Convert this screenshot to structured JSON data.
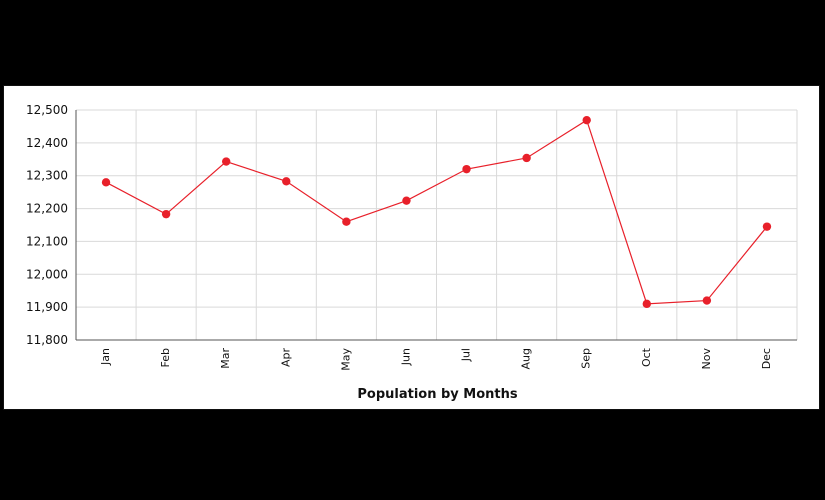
{
  "chart_data": {
    "type": "line",
    "title": "",
    "xlabel": "Population by Months",
    "ylabel": "",
    "categories": [
      "Jan",
      "Feb",
      "Mar",
      "Apr",
      "May",
      "Jun",
      "Jul",
      "Aug",
      "Sep",
      "Oct",
      "Nov",
      "Dec"
    ],
    "series": [
      {
        "values": [
          12280,
          12183,
          12343,
          12283,
          12160,
          12224,
          12320,
          12354,
          12469,
          11910,
          11920,
          12145
        ]
      }
    ],
    "y_ticks": [
      "11,800",
      "11,900",
      "12,000",
      "12,100",
      "12,200",
      "12,300",
      "12,400",
      "12,500"
    ],
    "ylim": [
      11800,
      12500
    ],
    "grid": true,
    "legend": "none",
    "colors": {
      "line": "#e8202a",
      "marker": "#e8202a",
      "grid": "#d9d9d9",
      "axis": "#555555"
    }
  }
}
